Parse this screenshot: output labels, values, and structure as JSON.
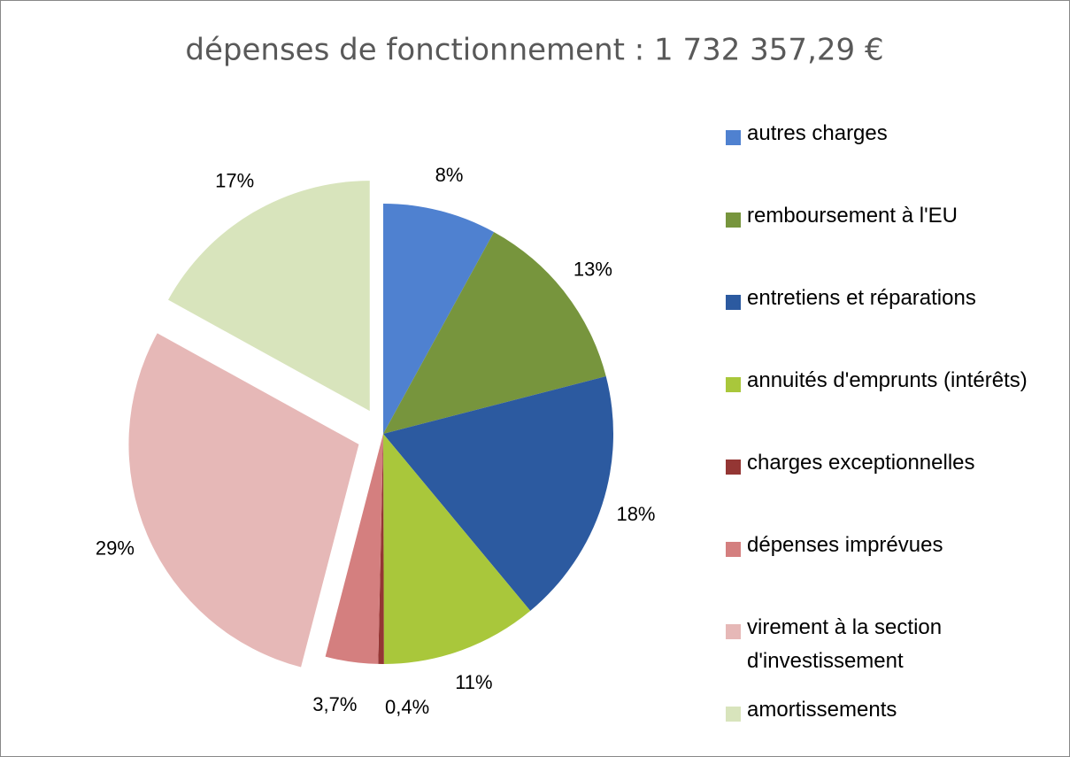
{
  "chart_data": {
    "type": "pie",
    "title": "dépenses de fonctionnement : 1 732 357,29 €",
    "categories": [
      "autres charges",
      "remboursement à l'EU",
      "entretiens et réparations",
      "annuités d'emprunts (intérêts)",
      "charges exceptionnelles",
      "dépenses imprévues",
      "virement à la section d'investissement",
      "amortissements"
    ],
    "values": [
      8,
      13,
      18,
      11,
      0.4,
      3.7,
      29,
      17
    ],
    "value_labels": [
      "8%",
      "13%",
      "18%",
      "11%",
      "0,4%",
      "3,7%",
      "29%",
      "17%"
    ],
    "colors": [
      "#4f81d0",
      "#77953d",
      "#2c5aa0",
      "#a9c73b",
      "#943634",
      "#d47f7f",
      "#e6b8b7",
      "#d8e4bc"
    ],
    "exploded": [
      false,
      false,
      false,
      false,
      false,
      false,
      true,
      true
    ],
    "legend": "right"
  }
}
